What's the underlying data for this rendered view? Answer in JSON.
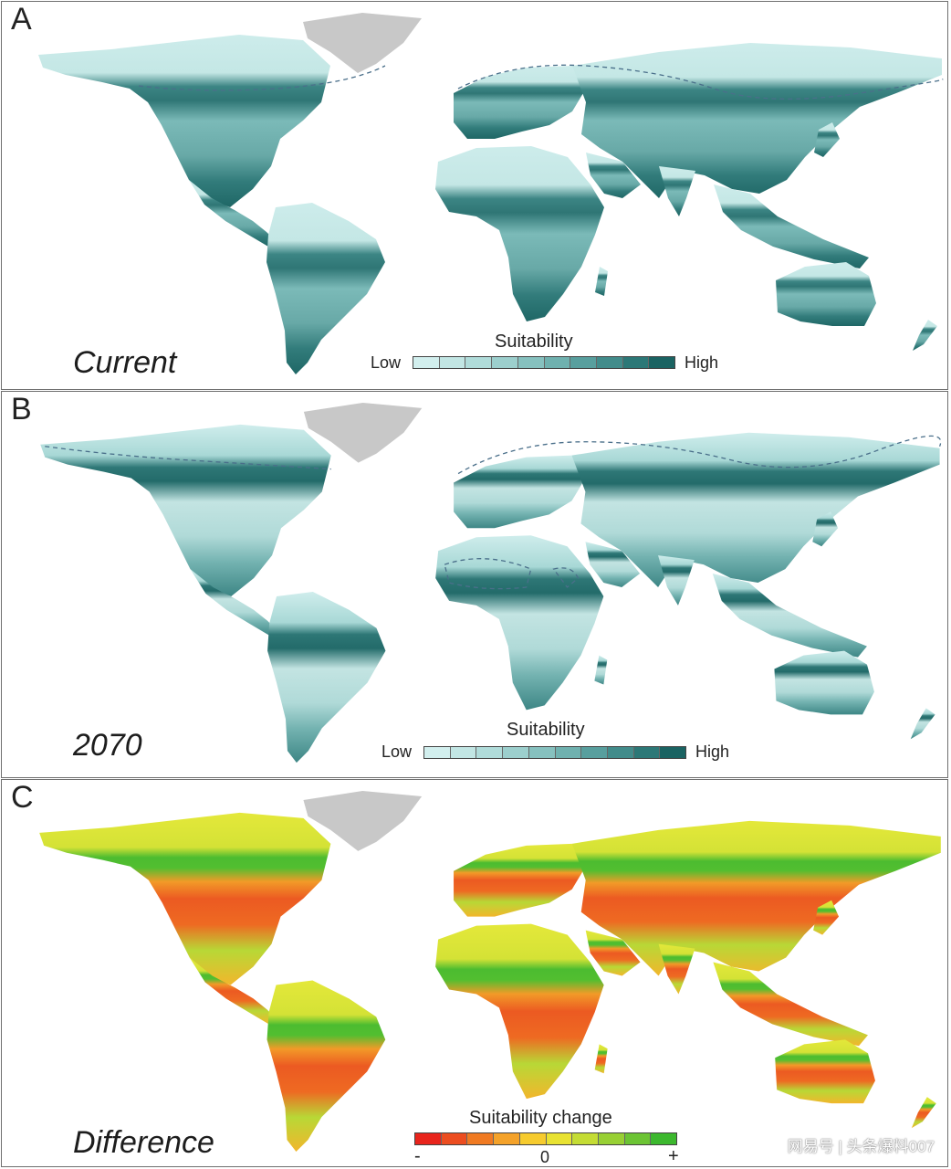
{
  "panels": [
    {
      "letter": "A",
      "scenario": "Current",
      "legend": {
        "title": "Suitability",
        "low": "Low",
        "high": "High",
        "colors": [
          "#d2efee",
          "#c2e6e4",
          "#b0dcda",
          "#9ccfcd",
          "#86c1bf",
          "#6fb1af",
          "#589f9e",
          "#428c8b",
          "#2c7877",
          "#1a6362"
        ]
      }
    },
    {
      "letter": "B",
      "scenario": "2070",
      "legend": {
        "title": "Suitability",
        "low": "Low",
        "high": "High",
        "colors": [
          "#d2efee",
          "#c2e6e4",
          "#b0dcda",
          "#9ccfcd",
          "#86c1bf",
          "#6fb1af",
          "#589f9e",
          "#428c8b",
          "#2c7877",
          "#1a6362"
        ]
      }
    },
    {
      "letter": "C",
      "scenario": "Difference",
      "legend": {
        "title": "Suitability change",
        "minus": "-",
        "zero": "0",
        "plus": "+",
        "colors": [
          "#e8241c",
          "#ec4d20",
          "#f07a22",
          "#f4a22a",
          "#f6cb2e",
          "#e8e232",
          "#c4dc34",
          "#98d034",
          "#6cc434",
          "#3cb82e"
        ]
      }
    }
  ],
  "colors": {
    "greenland": "#c8c8c8",
    "border": "#6f6f6f",
    "dashed_line": "#4a6f8a"
  },
  "watermark": "网易号 | 头条爆料007"
}
